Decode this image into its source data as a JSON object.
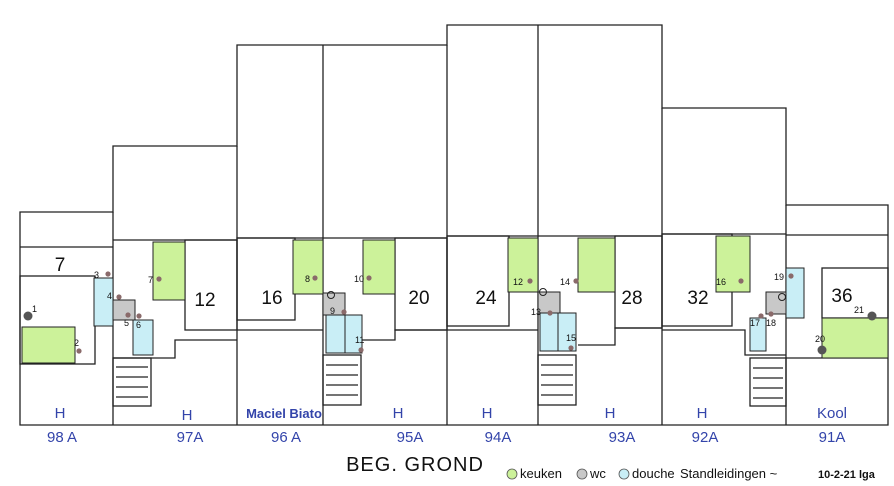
{
  "title": "BEG. GROND",
  "houses": [
    {
      "number": "98 A",
      "tenant": "H"
    },
    {
      "number": "97A",
      "tenant": "H"
    },
    {
      "number": "96 A",
      "tenant": "Maciel Biato"
    },
    {
      "number": "95A",
      "tenant": "H"
    },
    {
      "number": "94A",
      "tenant": "H"
    },
    {
      "number": "93A",
      "tenant": "H"
    },
    {
      "number": "92A",
      "tenant": "H"
    },
    {
      "number": "91A",
      "tenant": "Kool"
    }
  ],
  "room_numbers": [
    "7",
    "12",
    "16",
    "20",
    "24",
    "28",
    "32",
    "36"
  ],
  "points": [
    "1",
    "2",
    "3",
    "4",
    "5",
    "6",
    "7",
    "8",
    "9",
    "10",
    "11",
    "12",
    "13",
    "14",
    "15",
    "16",
    "17",
    "18",
    "19",
    "20",
    "21"
  ],
  "legend": {
    "keuken": {
      "label": "keuken",
      "color": "#ccf29a"
    },
    "wc": {
      "label": "wc",
      "color": "#c8c8c8"
    },
    "douche": {
      "label": "douche",
      "color": "#c9eef6"
    },
    "standleidingen": "Standleidingen ~"
  },
  "date_note": "10-2-21 lga",
  "colors": {
    "line": "#222222",
    "blue_text": "#3344aa",
    "point": "#8a6a6a"
  }
}
